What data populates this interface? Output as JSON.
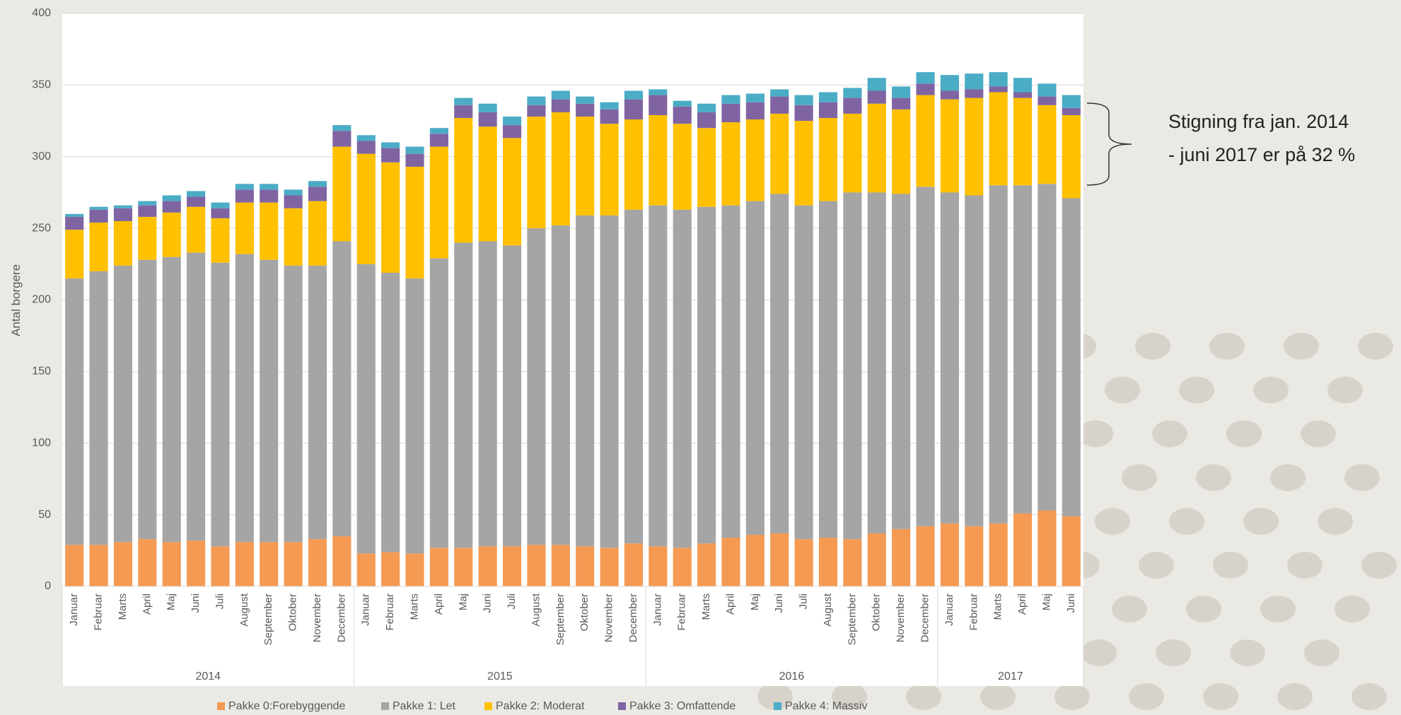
{
  "chart_data": {
    "type": "stacked_bar",
    "y_axis_label": "Antal borgere",
    "annotation": [
      "Stigning fra jan. 2014",
      "- juni 2017 er på 32 %"
    ],
    "groups": [
      {
        "name": "2014",
        "categories": [
          "Januar",
          "Februar",
          "Marts",
          "April",
          "Maj",
          "Juni",
          "Juli",
          "August",
          "September",
          "Oktober",
          "November",
          "December"
        ]
      },
      {
        "name": "2015",
        "categories": [
          "Januar",
          "Februar",
          "Marts",
          "April",
          "Maj",
          "Juni",
          "Juli",
          "August",
          "September",
          "Oktober",
          "November",
          "December"
        ]
      },
      {
        "name": "2016",
        "categories": [
          "Januar",
          "Februar",
          "Marts",
          "April",
          "Maj",
          "Juni",
          "Juli",
          "August",
          "September",
          "Oktober",
          "November",
          "December"
        ]
      },
      {
        "name": "2017",
        "categories": [
          "Januar",
          "Februar",
          "Marts",
          "April",
          "Maj",
          "Juni"
        ]
      }
    ],
    "series": [
      {
        "name": "Pakke 0:Forebyggende",
        "color": "#f59a53",
        "values": [
          29,
          29,
          31,
          33,
          31,
          32,
          28,
          31,
          31,
          31,
          33,
          35,
          23,
          24,
          23,
          27,
          27,
          28,
          28,
          29,
          29,
          28,
          27,
          30,
          28,
          27,
          30,
          34,
          36,
          37,
          33,
          34,
          33,
          37,
          40,
          42,
          44,
          42,
          44,
          51,
          53,
          49
        ]
      },
      {
        "name": "Pakke 1: Let",
        "color": "#a5a5a5",
        "values": [
          186,
          191,
          193,
          195,
          199,
          201,
          198,
          201,
          197,
          193,
          191,
          206,
          202,
          195,
          192,
          202,
          213,
          213,
          210,
          221,
          223,
          231,
          232,
          233,
          238,
          236,
          235,
          232,
          233,
          237,
          233,
          235,
          242,
          238,
          234,
          237,
          231,
          231,
          236,
          229,
          228,
          222
        ]
      },
      {
        "name": "Pakke 2: Moderat",
        "color": "#ffc000",
        "values": [
          34,
          34,
          31,
          30,
          31,
          32,
          31,
          36,
          40,
          40,
          45,
          66,
          77,
          77,
          78,
          78,
          87,
          80,
          75,
          78,
          79,
          69,
          64,
          63,
          63,
          60,
          55,
          58,
          57,
          56,
          59,
          58,
          55,
          62,
          59,
          64,
          65,
          68,
          65,
          61,
          55,
          58
        ]
      },
      {
        "name": "Pakke 3: Omfattende",
        "color": "#8064a2",
        "values": [
          9,
          9,
          9,
          8,
          8,
          7,
          7,
          9,
          9,
          9,
          10,
          11,
          9,
          10,
          9,
          9,
          9,
          10,
          9,
          8,
          9,
          9,
          10,
          14,
          14,
          12,
          11,
          13,
          12,
          12,
          11,
          11,
          11,
          9,
          8,
          8,
          6,
          6,
          4,
          4,
          6,
          5
        ]
      },
      {
        "name": "Pakke 4: Massiv",
        "color": "#4bacc6",
        "values": [
          2,
          2,
          2,
          3,
          4,
          4,
          4,
          4,
          4,
          4,
          4,
          4,
          4,
          4,
          5,
          4,
          5,
          6,
          6,
          6,
          6,
          5,
          5,
          6,
          4,
          4,
          6,
          6,
          6,
          5,
          7,
          7,
          7,
          9,
          8,
          8,
          11,
          11,
          10,
          10,
          9,
          9
        ]
      }
    ],
    "ylim": [
      0,
      400
    ],
    "yticks": [
      0,
      50,
      100,
      150,
      200,
      250,
      300,
      350,
      400
    ],
    "grid": true,
    "legend": "bottom"
  }
}
